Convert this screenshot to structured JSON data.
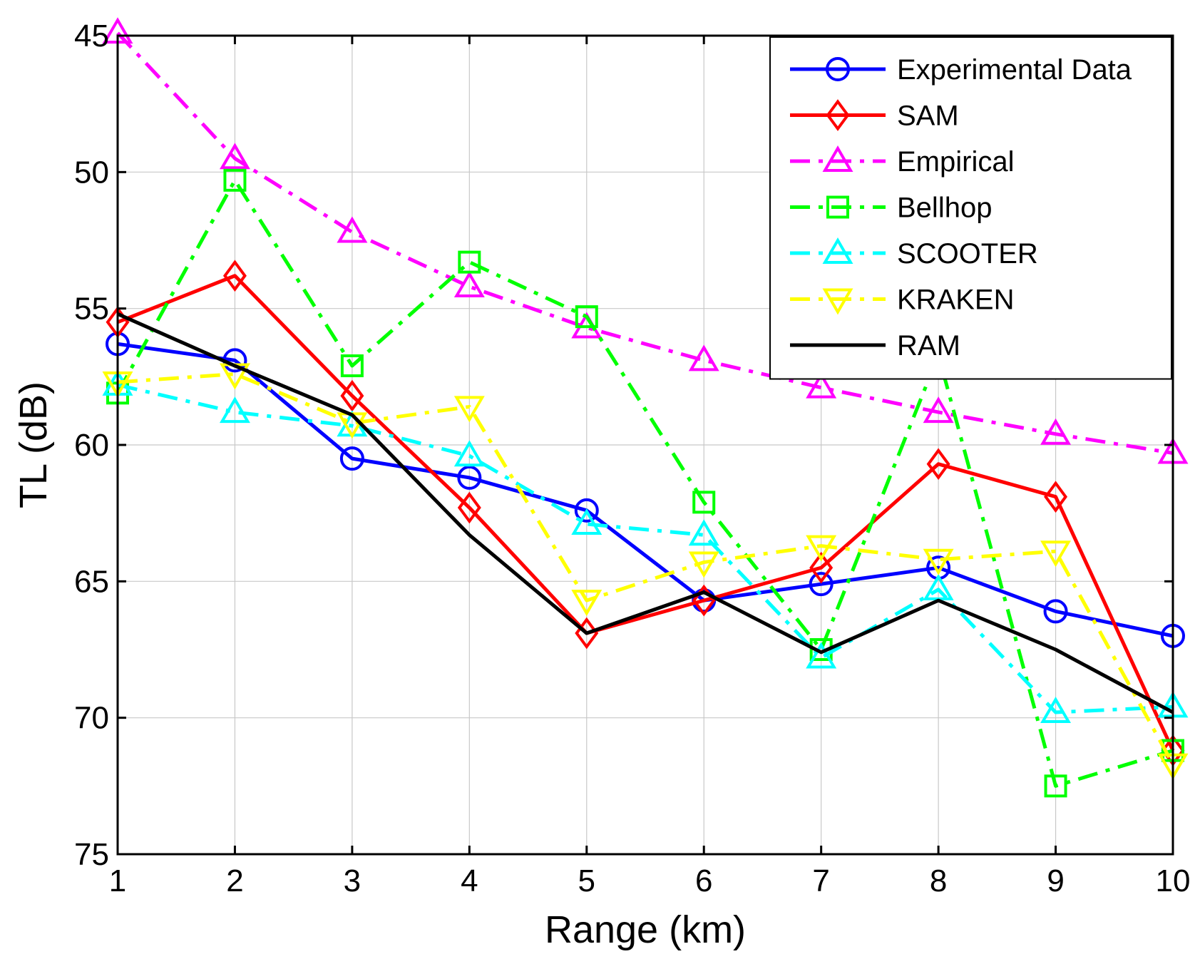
{
  "chart_data": {
    "type": "line",
    "title": "",
    "xlabel": "Range (km)",
    "ylabel": "TL (dB)",
    "xlim": [
      1,
      10
    ],
    "ylim": [
      45,
      75
    ],
    "y_reversed": true,
    "xticks": [
      "1",
      "2",
      "3",
      "4",
      "5",
      "6",
      "7",
      "8",
      "9",
      "10"
    ],
    "yticks": [
      "45",
      "50",
      "55",
      "60",
      "65",
      "70",
      "75"
    ],
    "grid": true,
    "legend_position": "top-right",
    "x": [
      1,
      2,
      3,
      4,
      5,
      6,
      7,
      8,
      9,
      10
    ],
    "series": [
      {
        "name": "Experimental Data",
        "values": [
          56.3,
          56.9,
          60.5,
          61.2,
          62.4,
          65.7,
          65.1,
          64.5,
          66.1,
          67.0
        ],
        "color": "#0000ff",
        "line": "solid",
        "marker": "circle"
      },
      {
        "name": "SAM",
        "values": [
          55.5,
          53.8,
          58.2,
          62.3,
          66.9,
          65.7,
          64.5,
          60.7,
          61.9,
          71.2
        ],
        "color": "#ff0000",
        "line": "solid",
        "marker": "diamond"
      },
      {
        "name": "Empirical",
        "values": [
          44.9,
          49.5,
          52.2,
          54.2,
          55.7,
          56.9,
          57.9,
          58.8,
          59.6,
          60.3
        ],
        "color": "#ff00ff",
        "line": "dashdot",
        "marker": "triangle-up"
      },
      {
        "name": "Bellhop",
        "values": [
          58.1,
          50.3,
          57.1,
          53.3,
          55.3,
          62.1,
          67.5,
          56.7,
          72.5,
          71.2
        ],
        "color": "#00ff00",
        "line": "dashdot",
        "marker": "square"
      },
      {
        "name": "SCOOTER",
        "values": [
          57.8,
          58.8,
          59.3,
          60.4,
          62.9,
          63.3,
          67.8,
          65.3,
          69.8,
          69.6
        ],
        "color": "#00ffff",
        "line": "dashdot",
        "marker": "triangle-up"
      },
      {
        "name": "KRAKEN",
        "values": [
          57.7,
          57.4,
          59.2,
          58.6,
          65.7,
          64.3,
          63.7,
          64.2,
          63.9,
          71.7
        ],
        "color": "#ffff00",
        "line": "dashdot",
        "marker": "triangle-down"
      },
      {
        "name": "RAM",
        "values": [
          55.2,
          57.1,
          58.9,
          63.3,
          66.9,
          65.4,
          67.6,
          65.7,
          67.5,
          69.8
        ],
        "color": "#000000",
        "line": "solid",
        "marker": "none"
      }
    ]
  }
}
